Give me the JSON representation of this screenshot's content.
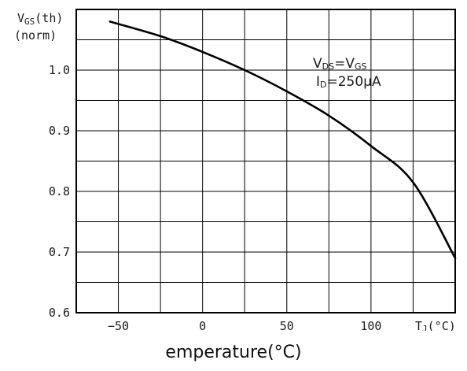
{
  "chart_data": {
    "type": "line",
    "ylabel_line1_main": "V",
    "ylabel_line1_sub": "GS",
    "ylabel_line1_tail": "(th)",
    "ylabel_line2": "(norm)",
    "x_unit_main": "T",
    "x_unit_sub": "J",
    "x_unit_tail": "(°C)",
    "caption": "emperature(°C)",
    "xlim": [
      -75,
      150
    ],
    "ylim": [
      0.6,
      1.1
    ],
    "x_gridlines": [
      -75,
      -50,
      -25,
      0,
      25,
      50,
      75,
      100,
      125
    ],
    "y_gridlines": [
      0.6,
      0.65,
      0.7,
      0.75,
      0.8,
      0.85,
      0.9,
      0.95,
      1.0,
      1.05
    ],
    "x_ticks": [
      {
        "value": -50,
        "label": "−50"
      },
      {
        "value": 0,
        "label": "0"
      },
      {
        "value": 50,
        "label": "50"
      },
      {
        "value": 100,
        "label": "100"
      }
    ],
    "y_ticks": [
      {
        "value": 1.0,
        "label": "1.0"
      },
      {
        "value": 0.9,
        "label": "0.9"
      },
      {
        "value": 0.8,
        "label": "0.8"
      },
      {
        "value": 0.7,
        "label": "0.7"
      },
      {
        "value": 0.6,
        "label": "0.6"
      }
    ],
    "annotation": {
      "line1": {
        "a": "V",
        "a_sub": "DS",
        "eq": "=V",
        "b_sub": "GS"
      },
      "line2": {
        "a": "I",
        "a_sub": "D",
        "eq": "=250μA"
      }
    },
    "series": [
      {
        "color": "#000000",
        "x": [
          -55,
          -25,
          0,
          25,
          50,
          75,
          100,
          125,
          150
        ],
        "y": [
          1.08,
          1.056,
          1.03,
          1.0,
          0.965,
          0.925,
          0.875,
          0.815,
          0.69
        ]
      }
    ],
    "grid": true
  }
}
